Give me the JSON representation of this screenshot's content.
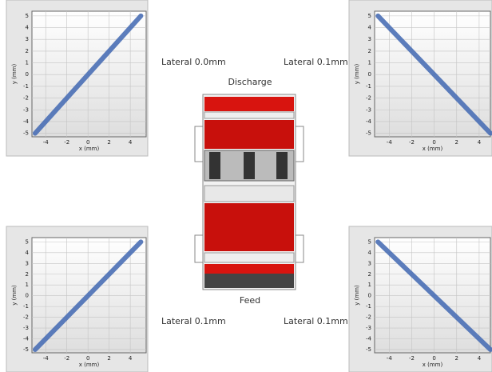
{
  "chart_data": [
    {
      "type": "line",
      "xlabel": "x (mm)",
      "ylabel": "y (mm)",
      "x": [
        -5,
        5
      ],
      "values": [
        -5,
        5
      ],
      "color": "#4a6fb5",
      "xlim": [
        -5.3,
        5.5
      ],
      "ylim": [
        -5.3,
        5.4
      ],
      "xticks": [
        -4,
        -2,
        0,
        2,
        4
      ],
      "yticks": [
        -5,
        -4,
        -3,
        -2,
        -1,
        0,
        1,
        2,
        3,
        4,
        5
      ],
      "grid": true
    },
    {
      "type": "line",
      "xlabel": "x (mm)",
      "ylabel": "y (mm)",
      "x": [
        -5,
        5
      ],
      "values": [
        5,
        -5
      ],
      "color": "#4a6fb5",
      "xlim": [
        -5.3,
        5.0
      ],
      "ylim": [
        -5.3,
        5.4
      ],
      "xticks": [
        -4,
        -2,
        0,
        2,
        4
      ],
      "yticks": [
        -5,
        -4,
        -3,
        -2,
        -1,
        0,
        1,
        2,
        3,
        4,
        5
      ],
      "grid": true
    },
    {
      "type": "line",
      "xlabel": "x (mm)",
      "ylabel": "y (mm)",
      "x": [
        -5,
        5
      ],
      "values": [
        -5,
        5
      ],
      "color": "#4a6fb5",
      "xlim": [
        -5.3,
        5.5
      ],
      "ylim": [
        -5.3,
        5.4
      ],
      "xticks": [
        -4,
        -2,
        0,
        2,
        4
      ],
      "yticks": [
        -5,
        -4,
        -3,
        -2,
        -1,
        0,
        1,
        2,
        3,
        4,
        5
      ],
      "grid": true
    },
    {
      "type": "line",
      "xlabel": "x (mm)",
      "ylabel": "y (mm)",
      "x": [
        -5,
        5
      ],
      "values": [
        5,
        -5
      ],
      "color": "#4a6fb5",
      "xlim": [
        -5.3,
        5.0
      ],
      "ylim": [
        -5.3,
        5.4
      ],
      "xticks": [
        -4,
        -2,
        0,
        2,
        4
      ],
      "yticks": [
        -5,
        -4,
        -3,
        -2,
        -1,
        0,
        1,
        2,
        3,
        4,
        5
      ],
      "grid": true
    }
  ],
  "labels": {
    "top_left": "Lateral 0.0mm",
    "top_right": "Lateral 0.1mm",
    "discharge": "Discharge",
    "feed": "Feed",
    "bottom_left": "Lateral 0.1mm",
    "bottom_right": "Lateral 0.1mm"
  }
}
